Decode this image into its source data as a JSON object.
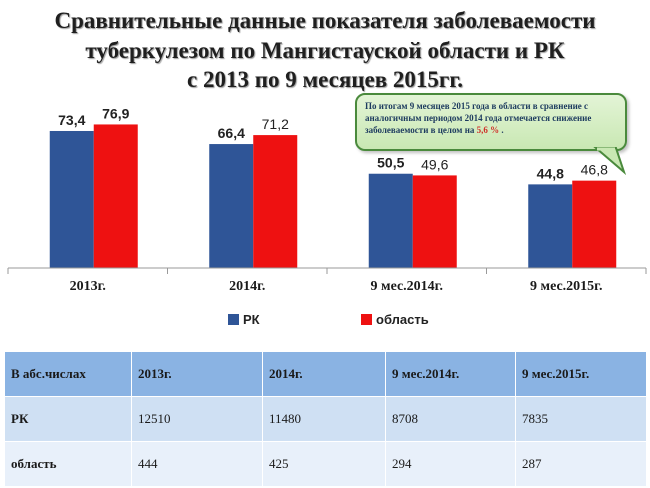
{
  "slide": {
    "title_lines": [
      "Сравнительные данные показателя заболеваемости",
      "туберкулезом по Мангистауской области и РК",
      "с 2013  по 9 месяцев 2015гг."
    ],
    "callout": {
      "text": "По итогам  9 месяцев 2015 года в области в сравнение с аналогичным периодом 2014 года отмечается снижение   заболеваемости в целом на",
      "highlight": "5,6 %",
      "end": ".",
      "highlight_color": "#d0302a"
    },
    "table": {
      "headers": [
        "В абс.числах",
        "2013г.",
        "2014г.",
        "9 мес.2014г.",
        "9 мес.2015г."
      ],
      "rows": [
        {
          "label": "РК",
          "values": [
            "12510",
            "11480",
            "8708",
            "7835"
          ]
        },
        {
          "label": "область",
          "values": [
            "444",
            "425",
            "294",
            "287"
          ]
        }
      ]
    }
  },
  "chart_data": {
    "type": "bar",
    "categories": [
      "2013г.",
      "2014г.",
      "9 мес.2014г.",
      "9 мес.2015г."
    ],
    "series": [
      {
        "name": "РК",
        "values": [
          73.4,
          66.4,
          50.5,
          44.8
        ],
        "labels": [
          "73,4",
          "66,4",
          "50,5",
          "44,8"
        ],
        "color": "#2f5597"
      },
      {
        "name": "область",
        "values": [
          76.9,
          71.2,
          49.6,
          46.8
        ],
        "labels": [
          "76,9",
          "71,2",
          "49,6",
          "46,8"
        ],
        "color": "#ee1111"
      }
    ],
    "ylim": [
      0,
      90
    ],
    "grid": false,
    "legend": "bottom",
    "title": "",
    "xlabel": "",
    "ylabel": ""
  }
}
